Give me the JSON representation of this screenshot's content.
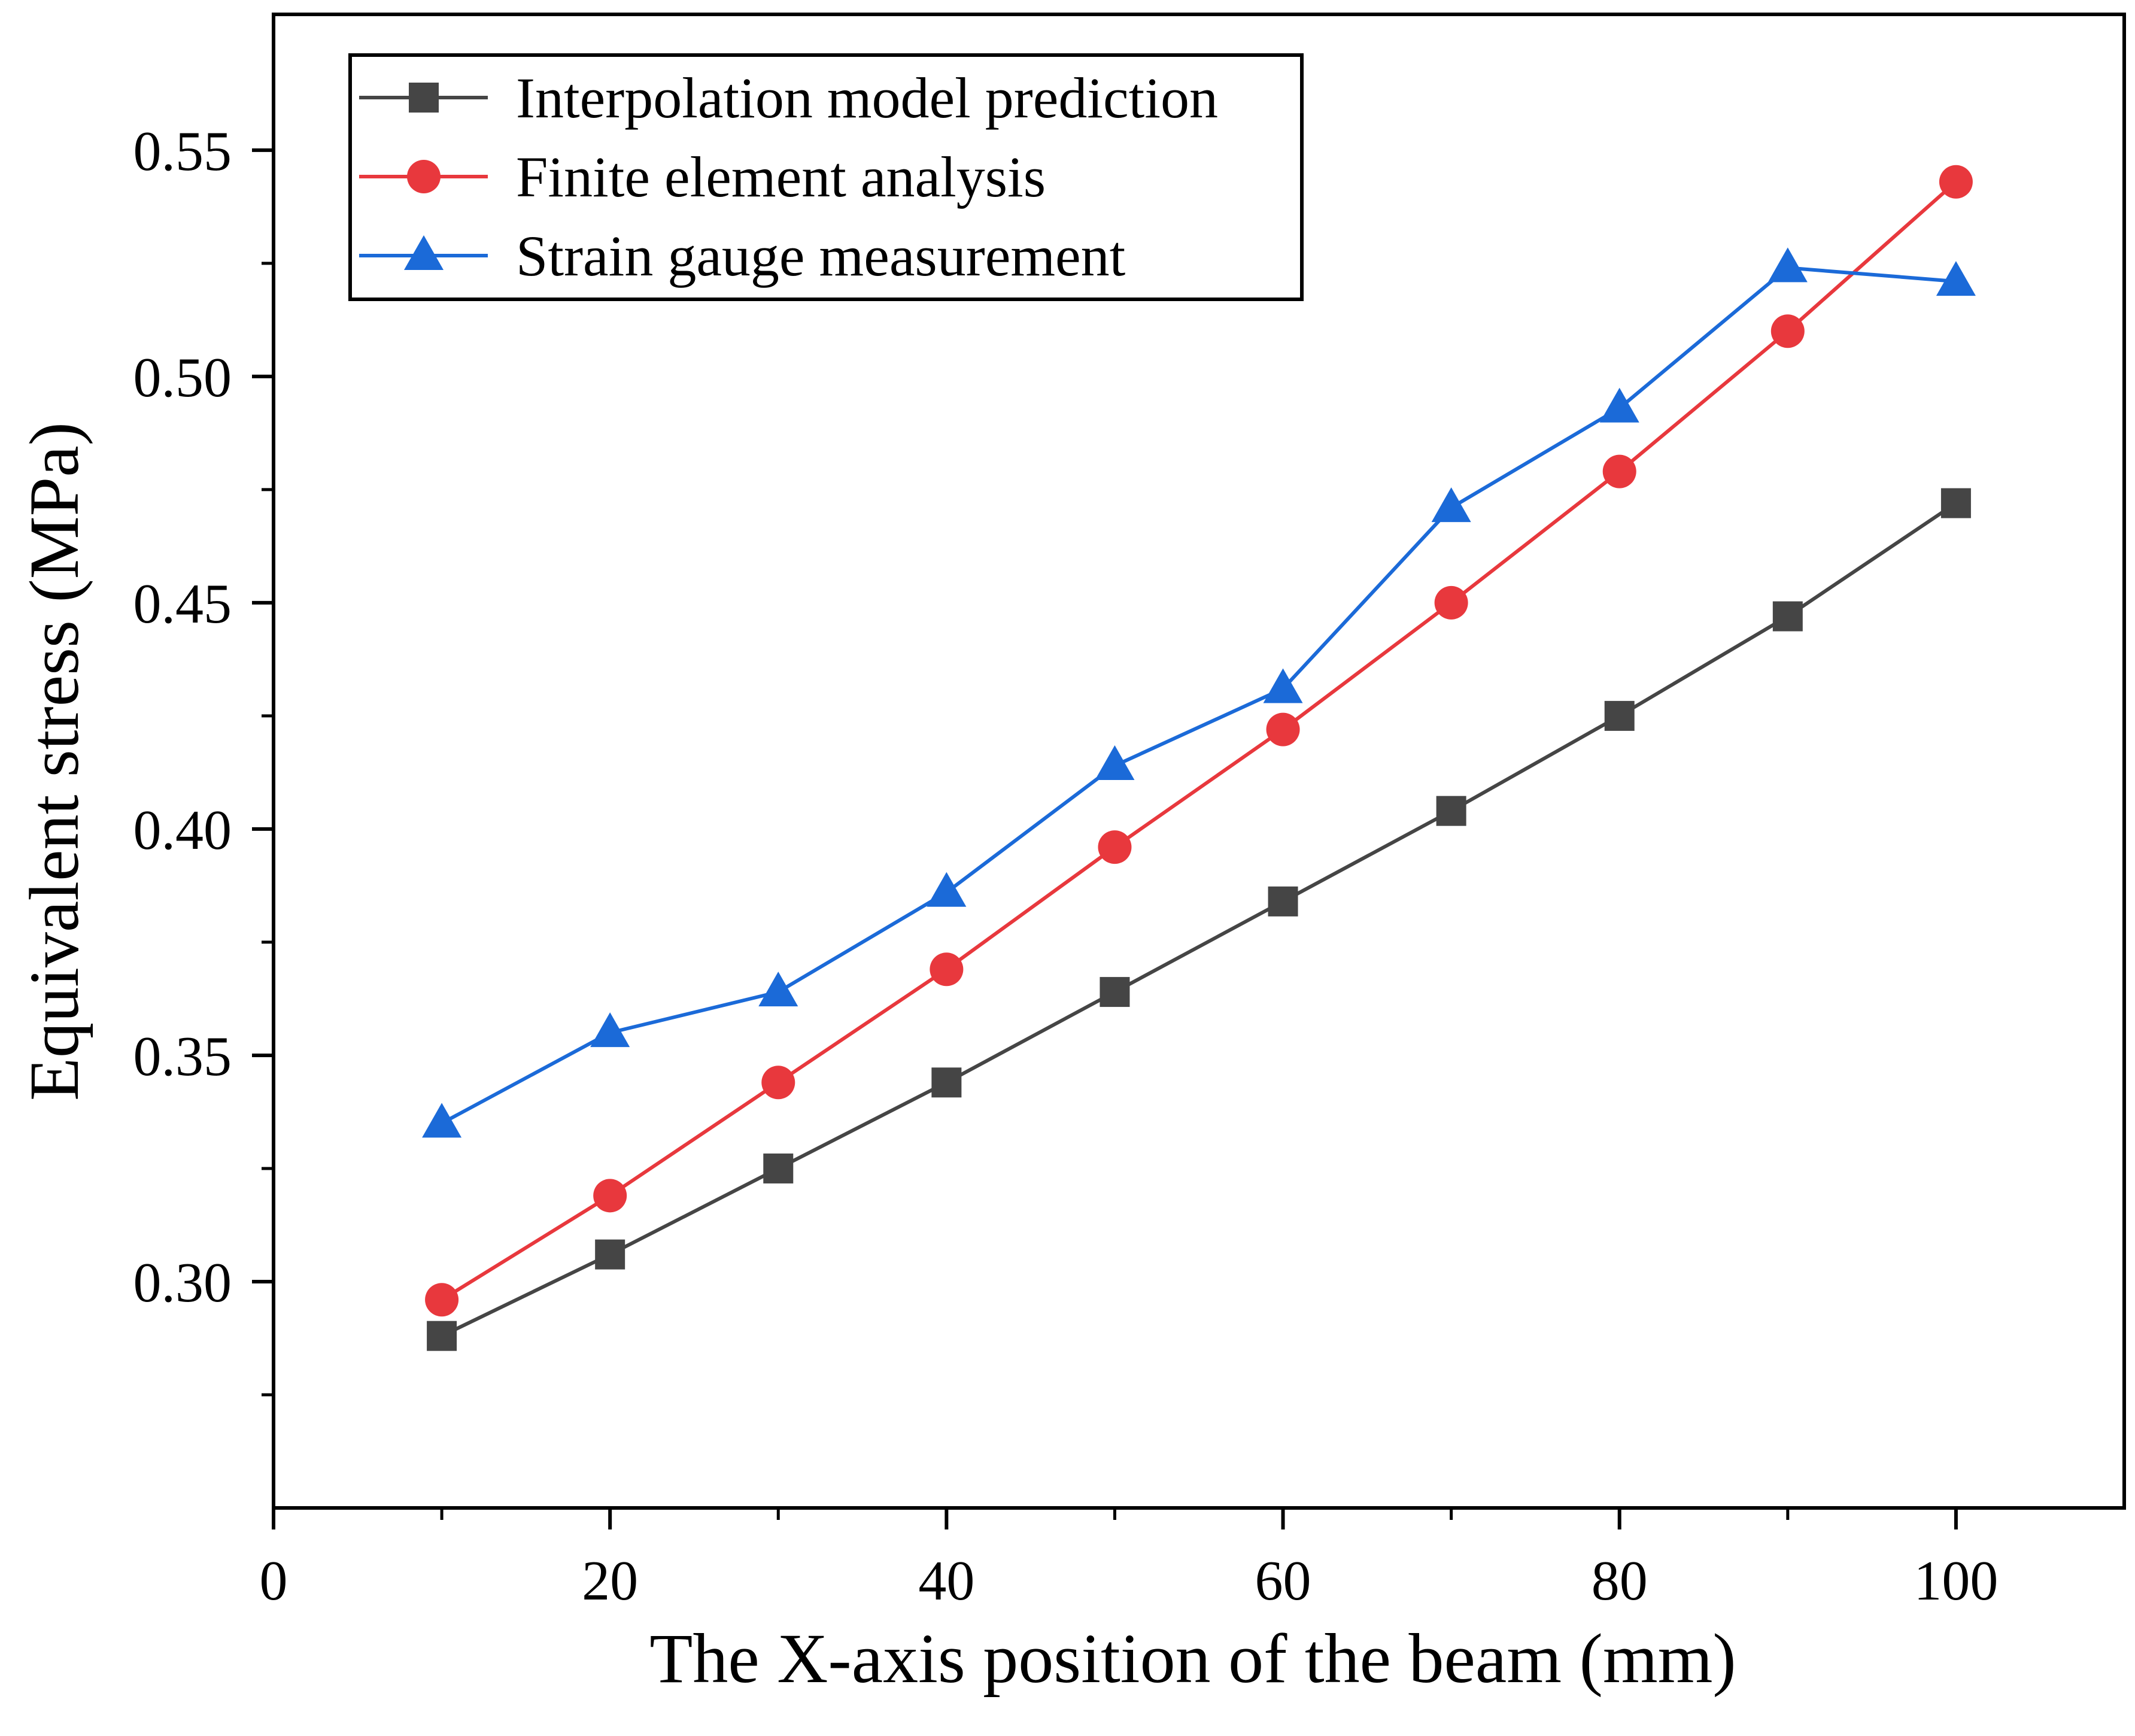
{
  "chart_data": {
    "type": "line",
    "title": "",
    "xlabel": "The X-axis position of the beam (mm)",
    "ylabel": "Equivalent stress (MPa)",
    "xlim": [
      0,
      110
    ],
    "ylim": [
      0.25,
      0.58
    ],
    "x_ticks": [
      0,
      20,
      40,
      60,
      80,
      100
    ],
    "x_tick_labels": [
      "0",
      "20",
      "40",
      "60",
      "80",
      "100"
    ],
    "x_minor_ticks": [
      10,
      30,
      50,
      70,
      90
    ],
    "y_ticks": [
      0.3,
      0.35,
      0.4,
      0.45,
      0.5,
      0.55
    ],
    "y_tick_labels": [
      "0.30",
      "0.35",
      "0.40",
      "0.45",
      "0.50",
      "0.55"
    ],
    "grid": false,
    "legend_position": "top-left",
    "x": [
      10,
      20,
      30,
      40,
      50,
      60,
      70,
      80,
      90,
      100
    ],
    "series": [
      {
        "name": "Interpolation model prediction",
        "color": "#454545",
        "marker": "square",
        "values": [
          0.288,
          0.306,
          0.325,
          0.344,
          0.364,
          0.384,
          0.404,
          0.425,
          0.447,
          0.472
        ]
      },
      {
        "name": "Finite element analysis",
        "color": "#e8383d",
        "marker": "circle",
        "values": [
          0.296,
          0.319,
          0.344,
          0.369,
          0.396,
          0.422,
          0.45,
          0.479,
          0.51,
          0.543
        ]
      },
      {
        "name": "Strain gauge measurement",
        "color": "#1b6ad8",
        "marker": "triangle",
        "values": [
          0.335,
          0.355,
          0.364,
          0.386,
          0.414,
          0.431,
          0.471,
          0.493,
          0.524,
          0.521
        ]
      }
    ]
  }
}
